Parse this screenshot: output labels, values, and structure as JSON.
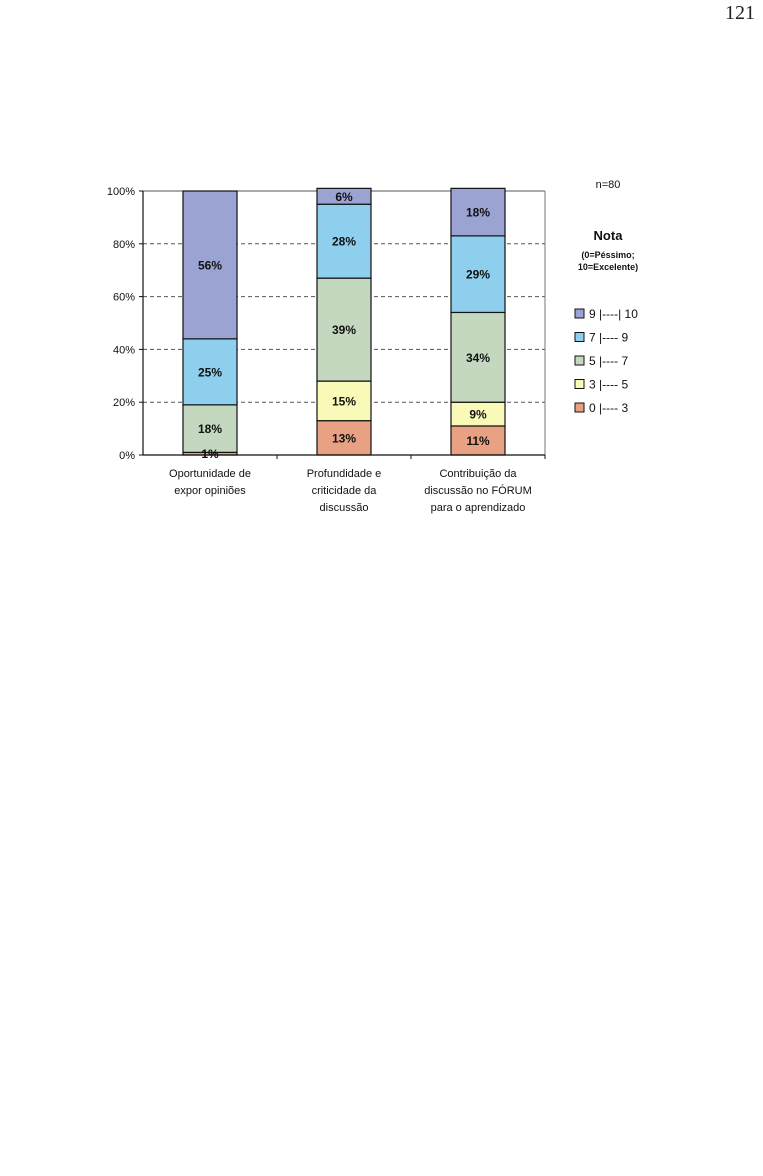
{
  "page_number": "121",
  "chart_data": {
    "type": "bar",
    "stacked": true,
    "categories": [
      [
        "Oportunidade de",
        "expor opiniões"
      ],
      [
        "Profundidade e",
        "criticidade da",
        "discussão"
      ],
      [
        "Contribuição da",
        "discussão no FÓRUM",
        "para o aprendizado"
      ]
    ],
    "series": [
      {
        "name": "0 |---- 3",
        "values": [
          1,
          13,
          11
        ],
        "labels": [
          "1%",
          "13%",
          "11%"
        ],
        "color": "#e8a283"
      },
      {
        "name": "3 |---- 5",
        "values": [
          0,
          15,
          9
        ],
        "labels": [
          "",
          "15%",
          "9%"
        ],
        "color": "#fafab8"
      },
      {
        "name": "5 |---- 7",
        "values": [
          18,
          39,
          34
        ],
        "labels": [
          "18%",
          "39%",
          "34%"
        ],
        "color": "#c3d8bf"
      },
      {
        "name": "7 |---- 9",
        "values": [
          25,
          28,
          29
        ],
        "labels": [
          "25%",
          "28%",
          "29%"
        ],
        "color": "#8fcfee"
      },
      {
        "name": "9 |----| 10",
        "values": [
          56,
          6,
          18
        ],
        "labels": [
          "56%",
          "6%",
          "18%"
        ],
        "color": "#9aa3d2"
      }
    ],
    "ylim": [
      0,
      100
    ],
    "yticks": [
      "0%",
      "20%",
      "40%",
      "60%",
      "80%",
      "100%"
    ],
    "grid": "horizontal dashed",
    "n_label": "n=80",
    "legend": {
      "title": "Nota",
      "subtitle": [
        "(0=Péssimo;",
        "10=Excelente)"
      ],
      "placement": "right",
      "order": [
        "9 |----| 10",
        "7 |---- 9",
        "5 |---- 7",
        "3 |---- 5",
        "0 |---- 3"
      ]
    }
  }
}
